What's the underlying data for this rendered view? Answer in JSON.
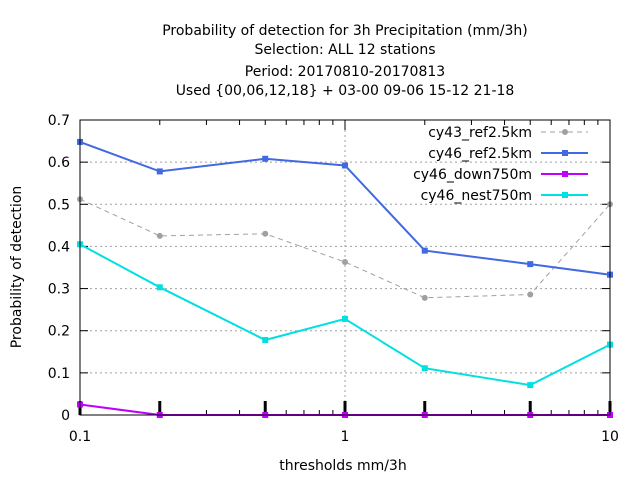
{
  "title_lines": [
    "Probability of detection  for 3h Precipitation (mm/3h)",
    "Selection: ALL      12 stations",
    "Period: 20170810-20170813",
    "Used {00,06,12,18} + 03-00 09-06 15-12 21-18"
  ],
  "chart_data": {
    "type": "line",
    "title": "Probability of detection  for 3h Precipitation (mm/3h)",
    "xlabel": "thresholds mm/3h",
    "ylabel": "Probability of detection",
    "xscale": "log",
    "xlim": [
      0.1,
      10
    ],
    "ylim": [
      0,
      0.7
    ],
    "x_ticks": [
      0.1,
      1,
      10
    ],
    "x_tick_labels": [
      "0.1",
      "1",
      "10"
    ],
    "y_ticks": [
      0,
      0.1,
      0.2,
      0.3,
      0.4,
      0.5,
      0.6,
      0.7
    ],
    "y_tick_labels": [
      "0",
      "0.1",
      "0.2",
      "0.3",
      "0.4",
      "0.5",
      "0.6",
      "0.7"
    ],
    "x": [
      0.1,
      0.2,
      0.5,
      1,
      2,
      5,
      10
    ],
    "grid": true,
    "legend_position": "top-right",
    "series": [
      {
        "name": "cy43_ref2.5km",
        "color": "#a0a0a0",
        "dashed": true,
        "values": [
          0.512,
          0.425,
          0.43,
          0.363,
          0.278,
          0.286,
          0.5
        ]
      },
      {
        "name": "cy46_ref2.5km",
        "color": "#4169e1",
        "dashed": false,
        "values": [
          0.648,
          0.578,
          0.608,
          0.592,
          0.39,
          0.358,
          0.333
        ]
      },
      {
        "name": "cy46_down750m",
        "color": "#c000ff",
        "dashed": false,
        "values": [
          0.025,
          0.0,
          0.0,
          0.0,
          0.0,
          0.0,
          0.0
        ]
      },
      {
        "name": "cy46_nest750m",
        "color": "#00e0e0",
        "dashed": false,
        "values": [
          0.405,
          0.303,
          0.178,
          0.228,
          0.111,
          0.071,
          0.167
        ]
      }
    ]
  }
}
